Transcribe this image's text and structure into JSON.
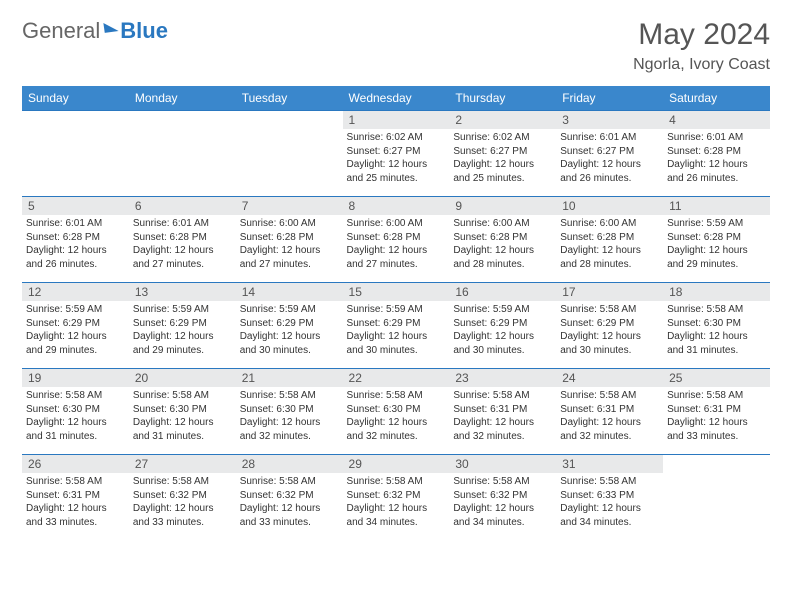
{
  "logo": {
    "general": "General",
    "blue": "Blue"
  },
  "title": "May 2024",
  "location": "Ngorla, Ivory Coast",
  "colors": {
    "header_bg": "#3a87cc",
    "border": "#2a78c0",
    "daynum_bg": "#e8e9ea"
  },
  "weekdays": [
    "Sunday",
    "Monday",
    "Tuesday",
    "Wednesday",
    "Thursday",
    "Friday",
    "Saturday"
  ],
  "weeks": [
    [
      {
        "day": "",
        "sunrise": "",
        "sunset": "",
        "daylight": "",
        "empty": true
      },
      {
        "day": "",
        "sunrise": "",
        "sunset": "",
        "daylight": "",
        "empty": true
      },
      {
        "day": "",
        "sunrise": "",
        "sunset": "",
        "daylight": "",
        "empty": true
      },
      {
        "day": "1",
        "sunrise": "Sunrise: 6:02 AM",
        "sunset": "Sunset: 6:27 PM",
        "daylight": "Daylight: 12 hours and 25 minutes."
      },
      {
        "day": "2",
        "sunrise": "Sunrise: 6:02 AM",
        "sunset": "Sunset: 6:27 PM",
        "daylight": "Daylight: 12 hours and 25 minutes."
      },
      {
        "day": "3",
        "sunrise": "Sunrise: 6:01 AM",
        "sunset": "Sunset: 6:27 PM",
        "daylight": "Daylight: 12 hours and 26 minutes."
      },
      {
        "day": "4",
        "sunrise": "Sunrise: 6:01 AM",
        "sunset": "Sunset: 6:28 PM",
        "daylight": "Daylight: 12 hours and 26 minutes."
      }
    ],
    [
      {
        "day": "5",
        "sunrise": "Sunrise: 6:01 AM",
        "sunset": "Sunset: 6:28 PM",
        "daylight": "Daylight: 12 hours and 26 minutes."
      },
      {
        "day": "6",
        "sunrise": "Sunrise: 6:01 AM",
        "sunset": "Sunset: 6:28 PM",
        "daylight": "Daylight: 12 hours and 27 minutes."
      },
      {
        "day": "7",
        "sunrise": "Sunrise: 6:00 AM",
        "sunset": "Sunset: 6:28 PM",
        "daylight": "Daylight: 12 hours and 27 minutes."
      },
      {
        "day": "8",
        "sunrise": "Sunrise: 6:00 AM",
        "sunset": "Sunset: 6:28 PM",
        "daylight": "Daylight: 12 hours and 27 minutes."
      },
      {
        "day": "9",
        "sunrise": "Sunrise: 6:00 AM",
        "sunset": "Sunset: 6:28 PM",
        "daylight": "Daylight: 12 hours and 28 minutes."
      },
      {
        "day": "10",
        "sunrise": "Sunrise: 6:00 AM",
        "sunset": "Sunset: 6:28 PM",
        "daylight": "Daylight: 12 hours and 28 minutes."
      },
      {
        "day": "11",
        "sunrise": "Sunrise: 5:59 AM",
        "sunset": "Sunset: 6:28 PM",
        "daylight": "Daylight: 12 hours and 29 minutes."
      }
    ],
    [
      {
        "day": "12",
        "sunrise": "Sunrise: 5:59 AM",
        "sunset": "Sunset: 6:29 PM",
        "daylight": "Daylight: 12 hours and 29 minutes."
      },
      {
        "day": "13",
        "sunrise": "Sunrise: 5:59 AM",
        "sunset": "Sunset: 6:29 PM",
        "daylight": "Daylight: 12 hours and 29 minutes."
      },
      {
        "day": "14",
        "sunrise": "Sunrise: 5:59 AM",
        "sunset": "Sunset: 6:29 PM",
        "daylight": "Daylight: 12 hours and 30 minutes."
      },
      {
        "day": "15",
        "sunrise": "Sunrise: 5:59 AM",
        "sunset": "Sunset: 6:29 PM",
        "daylight": "Daylight: 12 hours and 30 minutes."
      },
      {
        "day": "16",
        "sunrise": "Sunrise: 5:59 AM",
        "sunset": "Sunset: 6:29 PM",
        "daylight": "Daylight: 12 hours and 30 minutes."
      },
      {
        "day": "17",
        "sunrise": "Sunrise: 5:58 AM",
        "sunset": "Sunset: 6:29 PM",
        "daylight": "Daylight: 12 hours and 30 minutes."
      },
      {
        "day": "18",
        "sunrise": "Sunrise: 5:58 AM",
        "sunset": "Sunset: 6:30 PM",
        "daylight": "Daylight: 12 hours and 31 minutes."
      }
    ],
    [
      {
        "day": "19",
        "sunrise": "Sunrise: 5:58 AM",
        "sunset": "Sunset: 6:30 PM",
        "daylight": "Daylight: 12 hours and 31 minutes."
      },
      {
        "day": "20",
        "sunrise": "Sunrise: 5:58 AM",
        "sunset": "Sunset: 6:30 PM",
        "daylight": "Daylight: 12 hours and 31 minutes."
      },
      {
        "day": "21",
        "sunrise": "Sunrise: 5:58 AM",
        "sunset": "Sunset: 6:30 PM",
        "daylight": "Daylight: 12 hours and 32 minutes."
      },
      {
        "day": "22",
        "sunrise": "Sunrise: 5:58 AM",
        "sunset": "Sunset: 6:30 PM",
        "daylight": "Daylight: 12 hours and 32 minutes."
      },
      {
        "day": "23",
        "sunrise": "Sunrise: 5:58 AM",
        "sunset": "Sunset: 6:31 PM",
        "daylight": "Daylight: 12 hours and 32 minutes."
      },
      {
        "day": "24",
        "sunrise": "Sunrise: 5:58 AM",
        "sunset": "Sunset: 6:31 PM",
        "daylight": "Daylight: 12 hours and 32 minutes."
      },
      {
        "day": "25",
        "sunrise": "Sunrise: 5:58 AM",
        "sunset": "Sunset: 6:31 PM",
        "daylight": "Daylight: 12 hours and 33 minutes."
      }
    ],
    [
      {
        "day": "26",
        "sunrise": "Sunrise: 5:58 AM",
        "sunset": "Sunset: 6:31 PM",
        "daylight": "Daylight: 12 hours and 33 minutes."
      },
      {
        "day": "27",
        "sunrise": "Sunrise: 5:58 AM",
        "sunset": "Sunset: 6:32 PM",
        "daylight": "Daylight: 12 hours and 33 minutes."
      },
      {
        "day": "28",
        "sunrise": "Sunrise: 5:58 AM",
        "sunset": "Sunset: 6:32 PM",
        "daylight": "Daylight: 12 hours and 33 minutes."
      },
      {
        "day": "29",
        "sunrise": "Sunrise: 5:58 AM",
        "sunset": "Sunset: 6:32 PM",
        "daylight": "Daylight: 12 hours and 34 minutes."
      },
      {
        "day": "30",
        "sunrise": "Sunrise: 5:58 AM",
        "sunset": "Sunset: 6:32 PM",
        "daylight": "Daylight: 12 hours and 34 minutes."
      },
      {
        "day": "31",
        "sunrise": "Sunrise: 5:58 AM",
        "sunset": "Sunset: 6:33 PM",
        "daylight": "Daylight: 12 hours and 34 minutes."
      },
      {
        "day": "",
        "sunrise": "",
        "sunset": "",
        "daylight": "",
        "empty": true
      }
    ]
  ]
}
